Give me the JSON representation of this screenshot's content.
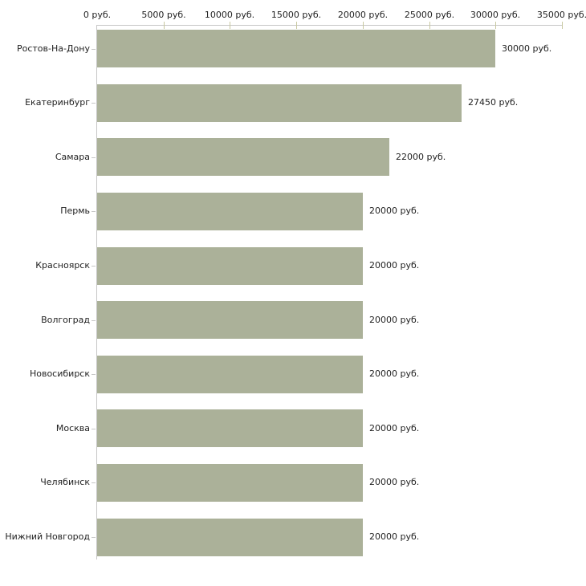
{
  "chart_data": {
    "type": "bar",
    "orientation": "horizontal",
    "title": "",
    "xlabel": "",
    "ylabel": "",
    "unit_suffix": " руб.",
    "xlim": [
      0,
      35000
    ],
    "grid": false,
    "legend": "none",
    "x_ticks": [
      {
        "value": 0,
        "label": "0 руб."
      },
      {
        "value": 5000,
        "label": "5000 руб."
      },
      {
        "value": 10000,
        "label": "10000 руб."
      },
      {
        "value": 15000,
        "label": "15000 руб."
      },
      {
        "value": 20000,
        "label": "20000 руб."
      },
      {
        "value": 25000,
        "label": "25000 руб."
      },
      {
        "value": 30000,
        "label": "30000 руб."
      },
      {
        "value": 35000,
        "label": "35000 руб."
      }
    ],
    "categories": [
      "Ростов-На-Дону",
      "Екатеринбург",
      "Самара",
      "Пермь",
      "Красноярск",
      "Волгоград",
      "Новосибирск",
      "Москва",
      "Челябинск",
      "Нижний Новгород"
    ],
    "values": [
      30000,
      27450,
      22000,
      20000,
      20000,
      20000,
      20000,
      20000,
      20000,
      20000
    ],
    "value_labels": [
      "30000 руб.",
      "27450 руб.",
      "22000 руб.",
      "20000 руб.",
      "20000 руб.",
      "20000 руб.",
      "20000 руб.",
      "20000 руб.",
      "20000 руб.",
      "20000 руб."
    ],
    "colors": {
      "bar": "#abb199",
      "axis_line": "#c6c6c6",
      "tick_mark": "#c8c8a0",
      "text": "#222222",
      "background": "#ffffff"
    }
  }
}
